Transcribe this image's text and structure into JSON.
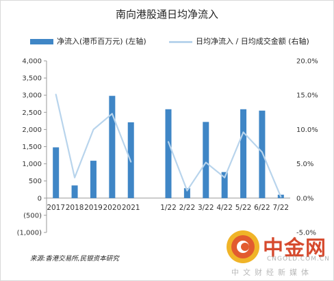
{
  "chart_data": {
    "type": "bar",
    "title": "南向港股通日均净流入",
    "categories": [
      "2017",
      "2018",
      "2019",
      "2020",
      "2021",
      "",
      "1/22",
      "2/22",
      "3/22",
      "4/22",
      "5/22",
      "6/22",
      "7/22"
    ],
    "series": [
      {
        "name": "净流入(港币百万元) (左轴)",
        "type": "bar",
        "axis": "left",
        "values": [
          1480,
          370,
          1090,
          2980,
          2210,
          null,
          2590,
          290,
          2220,
          760,
          2590,
          2550,
          100
        ]
      },
      {
        "name": "日均净流入 / 日均成交金额 (右轴)",
        "type": "line",
        "axis": "right",
        "values": [
          15.1,
          3.0,
          10.0,
          12.3,
          5.3,
          null,
          8.2,
          1.1,
          5.2,
          3.0,
          9.6,
          6.7,
          0.2
        ]
      }
    ],
    "left_axis": {
      "ylim": [
        -1000,
        4000
      ],
      "ticks": [
        "(1,000)",
        "(500)",
        "0",
        "500",
        "1,000",
        "1,500",
        "2,000",
        "2,500",
        "3,000",
        "3,500",
        "4,000"
      ]
    },
    "right_axis": {
      "ylim": [
        -5,
        20
      ],
      "ticks": [
        "-5.0%",
        "0.0%",
        "5.0%",
        "10.0%",
        "15.0%",
        "20.0%"
      ]
    },
    "legend_position": "top",
    "grid": false,
    "colors": {
      "bar": "#3f86c6",
      "line": "#b8d4ec"
    }
  },
  "source": "来源:香港交易所,民银资本研究",
  "watermark": {
    "name": "中金网",
    "url": "CNGOLD.COM.CN",
    "tagline": "中文财经新媒体"
  }
}
